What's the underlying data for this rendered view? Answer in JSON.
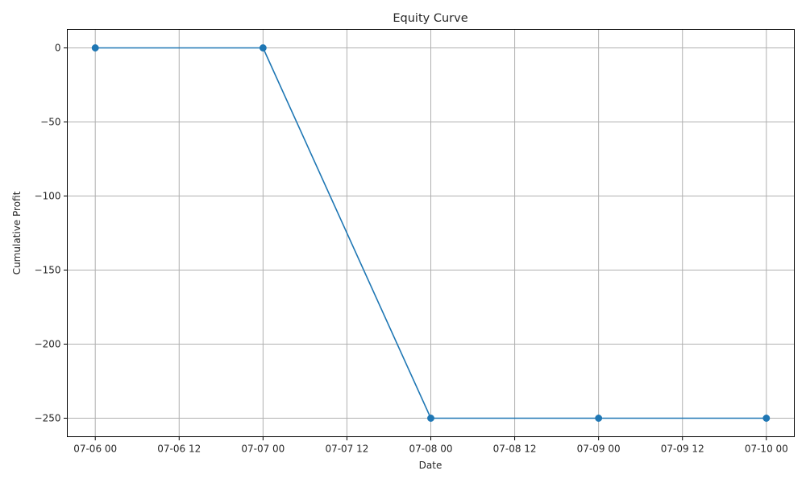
{
  "chart_data": {
    "type": "line",
    "title": "Equity Curve",
    "xlabel": "Date",
    "ylabel": "Cumulative Profit",
    "x": [
      "07-06 00",
      "07-07 00",
      "07-08 00",
      "07-09 00",
      "07-10 00"
    ],
    "series": [
      {
        "values": [
          0,
          0,
          -250,
          -250,
          -250
        ],
        "color": "#1f77b4",
        "marker": "circle"
      }
    ],
    "x_ticks": [
      "07-06 00",
      "07-06 12",
      "07-07 00",
      "07-07 12",
      "07-08 00",
      "07-08 12",
      "07-09 00",
      "07-09 12",
      "07-10 00"
    ],
    "y_ticks": [
      0,
      -50,
      -100,
      -150,
      -200,
      -250
    ],
    "y_tick_labels": [
      "0",
      "−50",
      "−100",
      "−150",
      "−200",
      "−250"
    ],
    "xlim": [
      "07-05 20",
      "07-10 04"
    ],
    "ylim": [
      -262.5,
      12.5
    ],
    "grid": true,
    "legend": "none"
  }
}
